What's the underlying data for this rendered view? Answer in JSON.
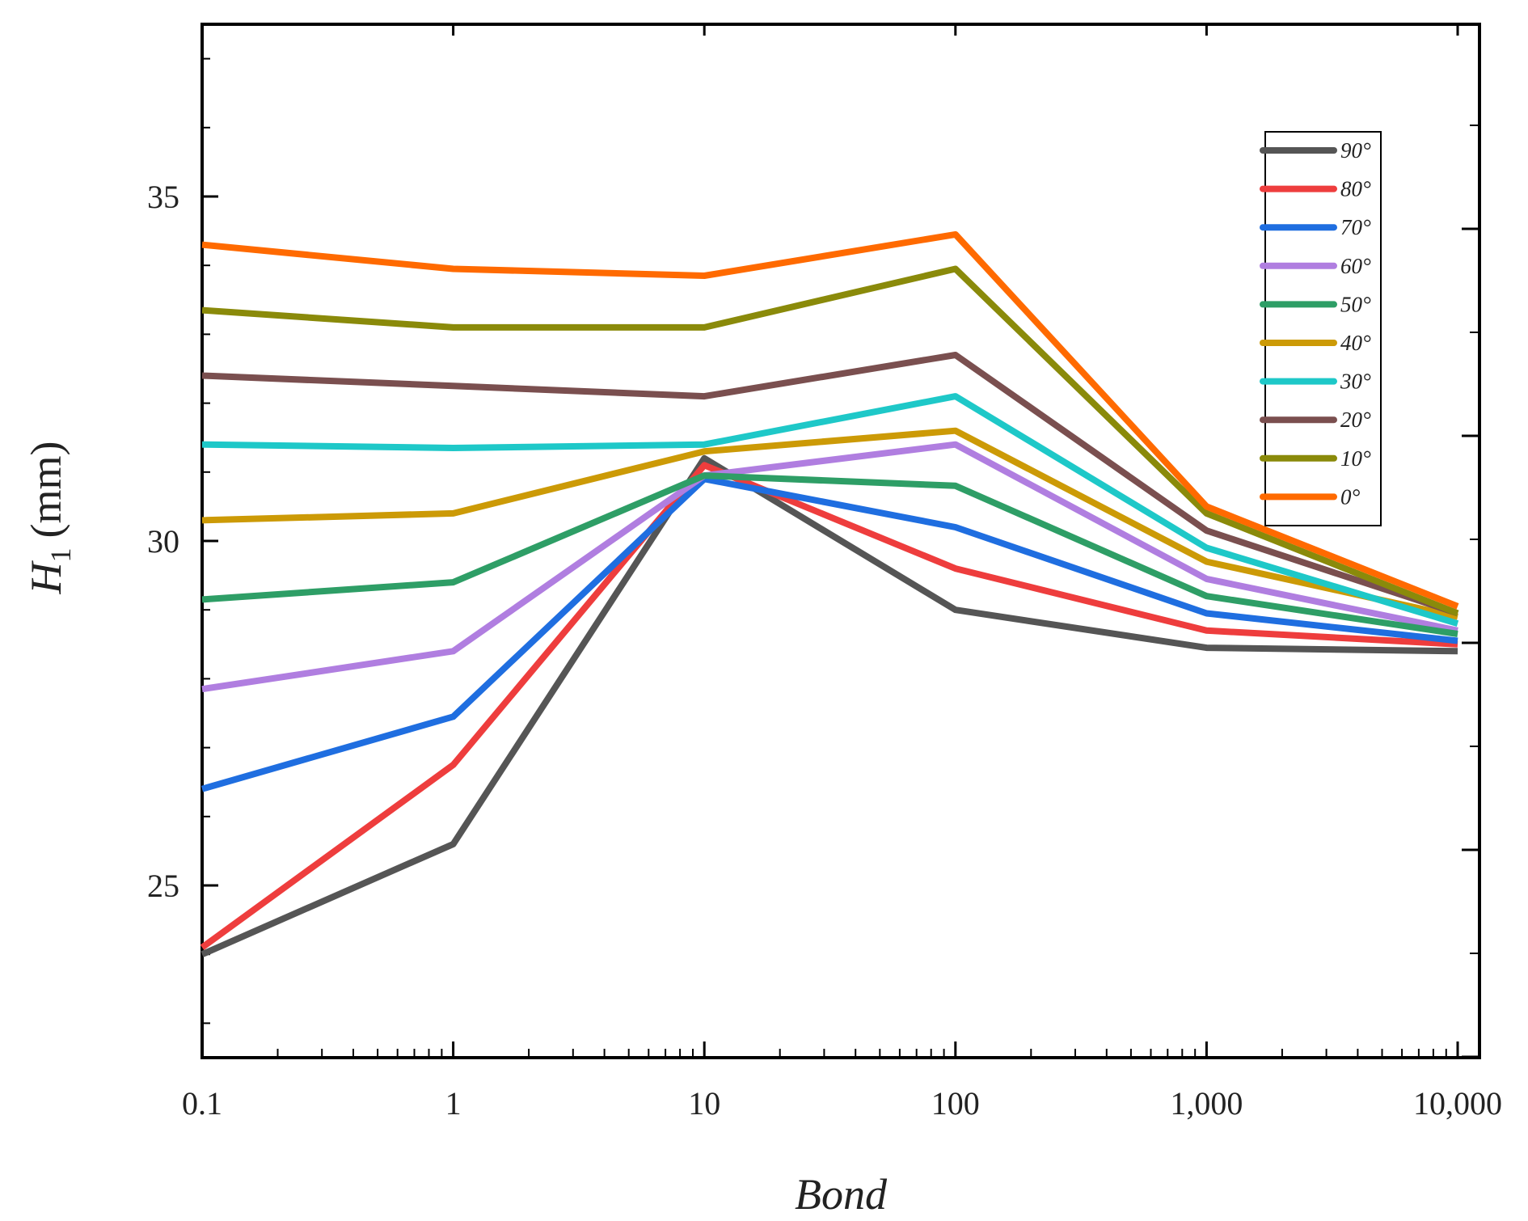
{
  "chart_data": {
    "type": "line",
    "title": "",
    "xlabel": "Bond",
    "ylabel_main": "H",
    "ylabel_sub": "1",
    "ylabel_unit": "(mm)",
    "xscale": "log",
    "x": [
      0.1,
      1,
      10,
      100,
      1000,
      10000
    ],
    "x_tick_labels": [
      "0.1",
      "1",
      "10",
      "100",
      "1,000",
      "10,000"
    ],
    "xlim": [
      0.1,
      10000
    ],
    "y_ticks": [
      25,
      30,
      35
    ],
    "y_tick_labels": [
      "25",
      "30",
      "35"
    ],
    "ylim": [
      22.5,
      37.5
    ],
    "legend_position": "top-right",
    "series": [
      {
        "name": "90°",
        "color": "#555555",
        "values": [
          24.0,
          25.6,
          31.2,
          29.0,
          28.45,
          28.4
        ]
      },
      {
        "name": "80°",
        "color": "#ee3d3d",
        "values": [
          24.1,
          26.75,
          31.1,
          29.6,
          28.7,
          28.5
        ]
      },
      {
        "name": "70°",
        "color": "#1f6ee0",
        "values": [
          26.4,
          27.45,
          30.9,
          30.2,
          28.95,
          28.55
        ]
      },
      {
        "name": "60°",
        "color": "#b07ee0",
        "values": [
          27.85,
          28.4,
          30.95,
          31.4,
          29.45,
          28.7
        ]
      },
      {
        "name": "50°",
        "color": "#2e9e66",
        "values": [
          29.15,
          29.4,
          30.95,
          30.8,
          29.2,
          28.65
        ]
      },
      {
        "name": "40°",
        "color": "#cc9a06",
        "values": [
          30.3,
          30.4,
          31.3,
          31.6,
          29.7,
          28.9
        ]
      },
      {
        "name": "30°",
        "color": "#1ec8c8",
        "values": [
          31.4,
          31.35,
          31.4,
          32.1,
          29.9,
          28.8
        ]
      },
      {
        "name": "20°",
        "color": "#7a4f4f",
        "values": [
          32.4,
          32.25,
          32.1,
          32.7,
          30.15,
          28.95
        ]
      },
      {
        "name": "10°",
        "color": "#8a8a0a",
        "values": [
          33.35,
          33.1,
          33.1,
          33.95,
          30.4,
          28.95
        ]
      },
      {
        "name": "0°",
        "color": "#ff6a00",
        "values": [
          34.3,
          33.95,
          33.85,
          34.45,
          30.5,
          29.05
        ]
      }
    ]
  }
}
